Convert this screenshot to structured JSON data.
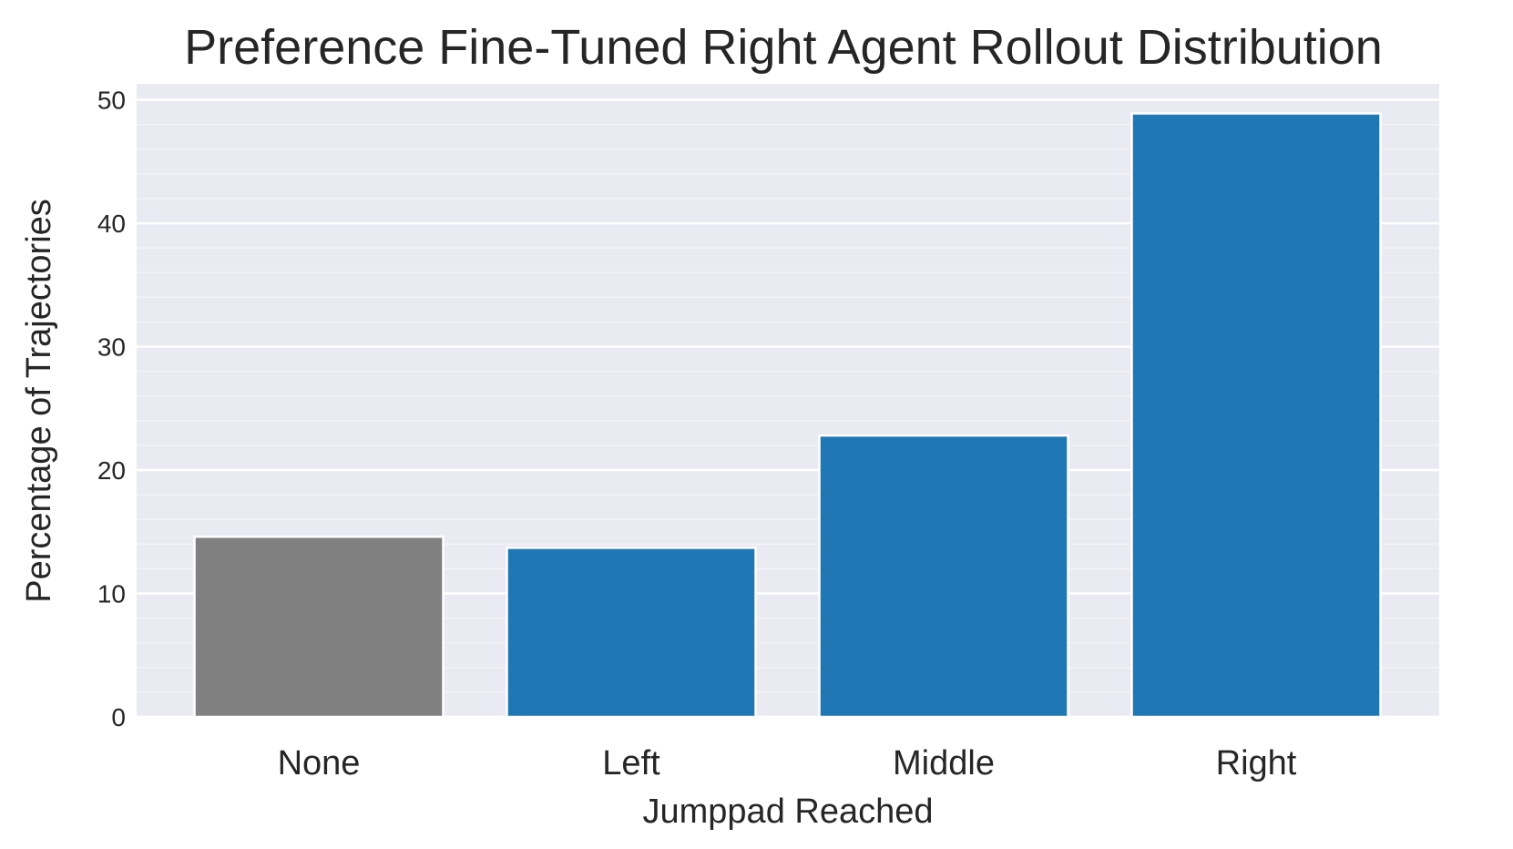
{
  "chart_data": {
    "type": "bar",
    "title": "Preference Fine-Tuned Right Agent Rollout Distribution",
    "xlabel": "Jumppad Reached",
    "ylabel": "Percentage of Trajectories",
    "categories": [
      "None",
      "Left",
      "Middle",
      "Right"
    ],
    "values": [
      14.6,
      13.7,
      22.8,
      48.9
    ],
    "bar_colors": [
      "#808080",
      "#1f77b4",
      "#1f77b4",
      "#1f77b4"
    ],
    "ylim": [
      0,
      51.3
    ],
    "yticks": [
      0,
      10,
      20,
      30,
      40,
      50
    ],
    "ytick_labels": [
      "0",
      "10",
      "20",
      "30",
      "40",
      "50"
    ],
    "grid": true,
    "minor_grid": true,
    "legend": "none",
    "background_color": "#eaeaf2"
  }
}
